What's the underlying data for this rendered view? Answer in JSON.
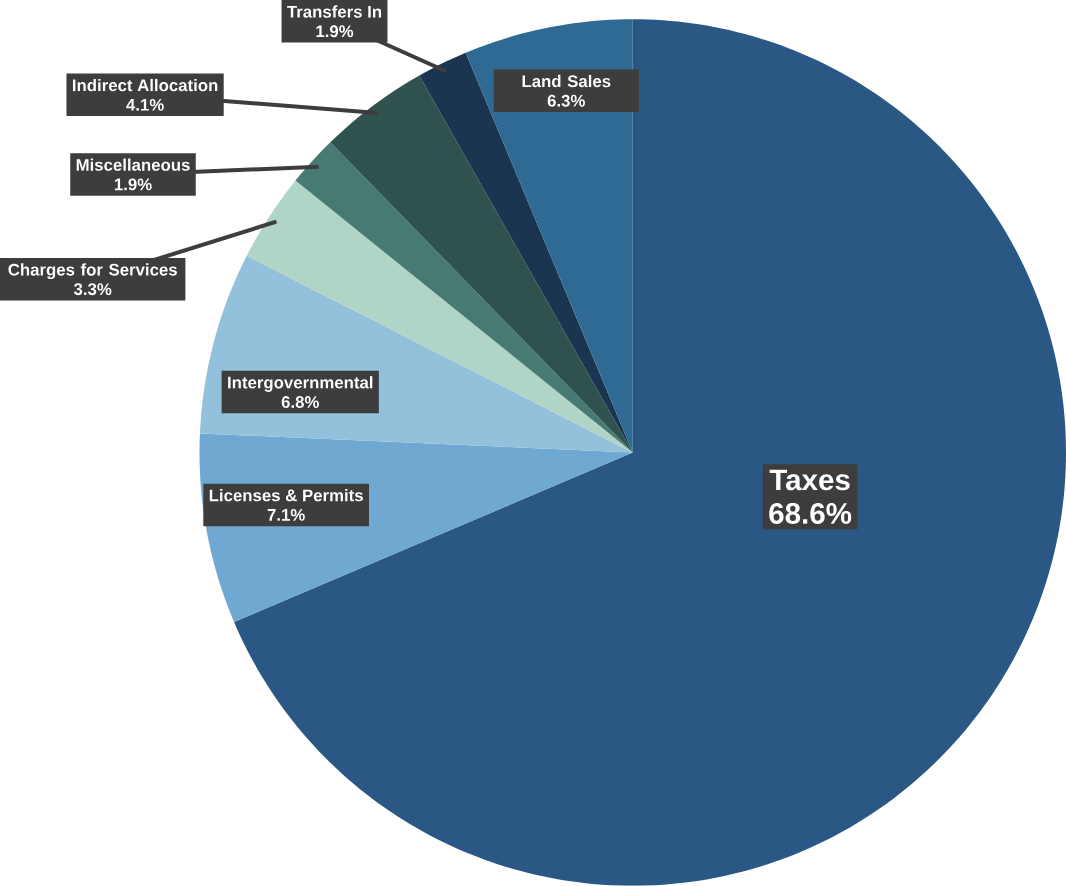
{
  "chart_data": {
    "type": "pie",
    "categories": [
      "Taxes",
      "Licenses & Permits",
      "Intergovernmental",
      "Charges for Services",
      "Miscellaneous",
      "Indirect Allocation",
      "Transfers In",
      "Land Sales"
    ],
    "values": [
      68.6,
      7.1,
      6.8,
      3.3,
      1.9,
      4.1,
      1.9,
      6.3
    ],
    "value_labels": [
      "68.6%",
      "7.1%",
      "6.8%",
      "3.3%",
      "1.9%",
      "4.1%",
      "1.9%",
      "6.3%"
    ],
    "colors": [
      "#2a5783",
      "#6fa8d0",
      "#93c0da",
      "#b0d4c5",
      "#467a73",
      "#30524f",
      "#1b3550",
      "#2e6a93"
    ]
  }
}
